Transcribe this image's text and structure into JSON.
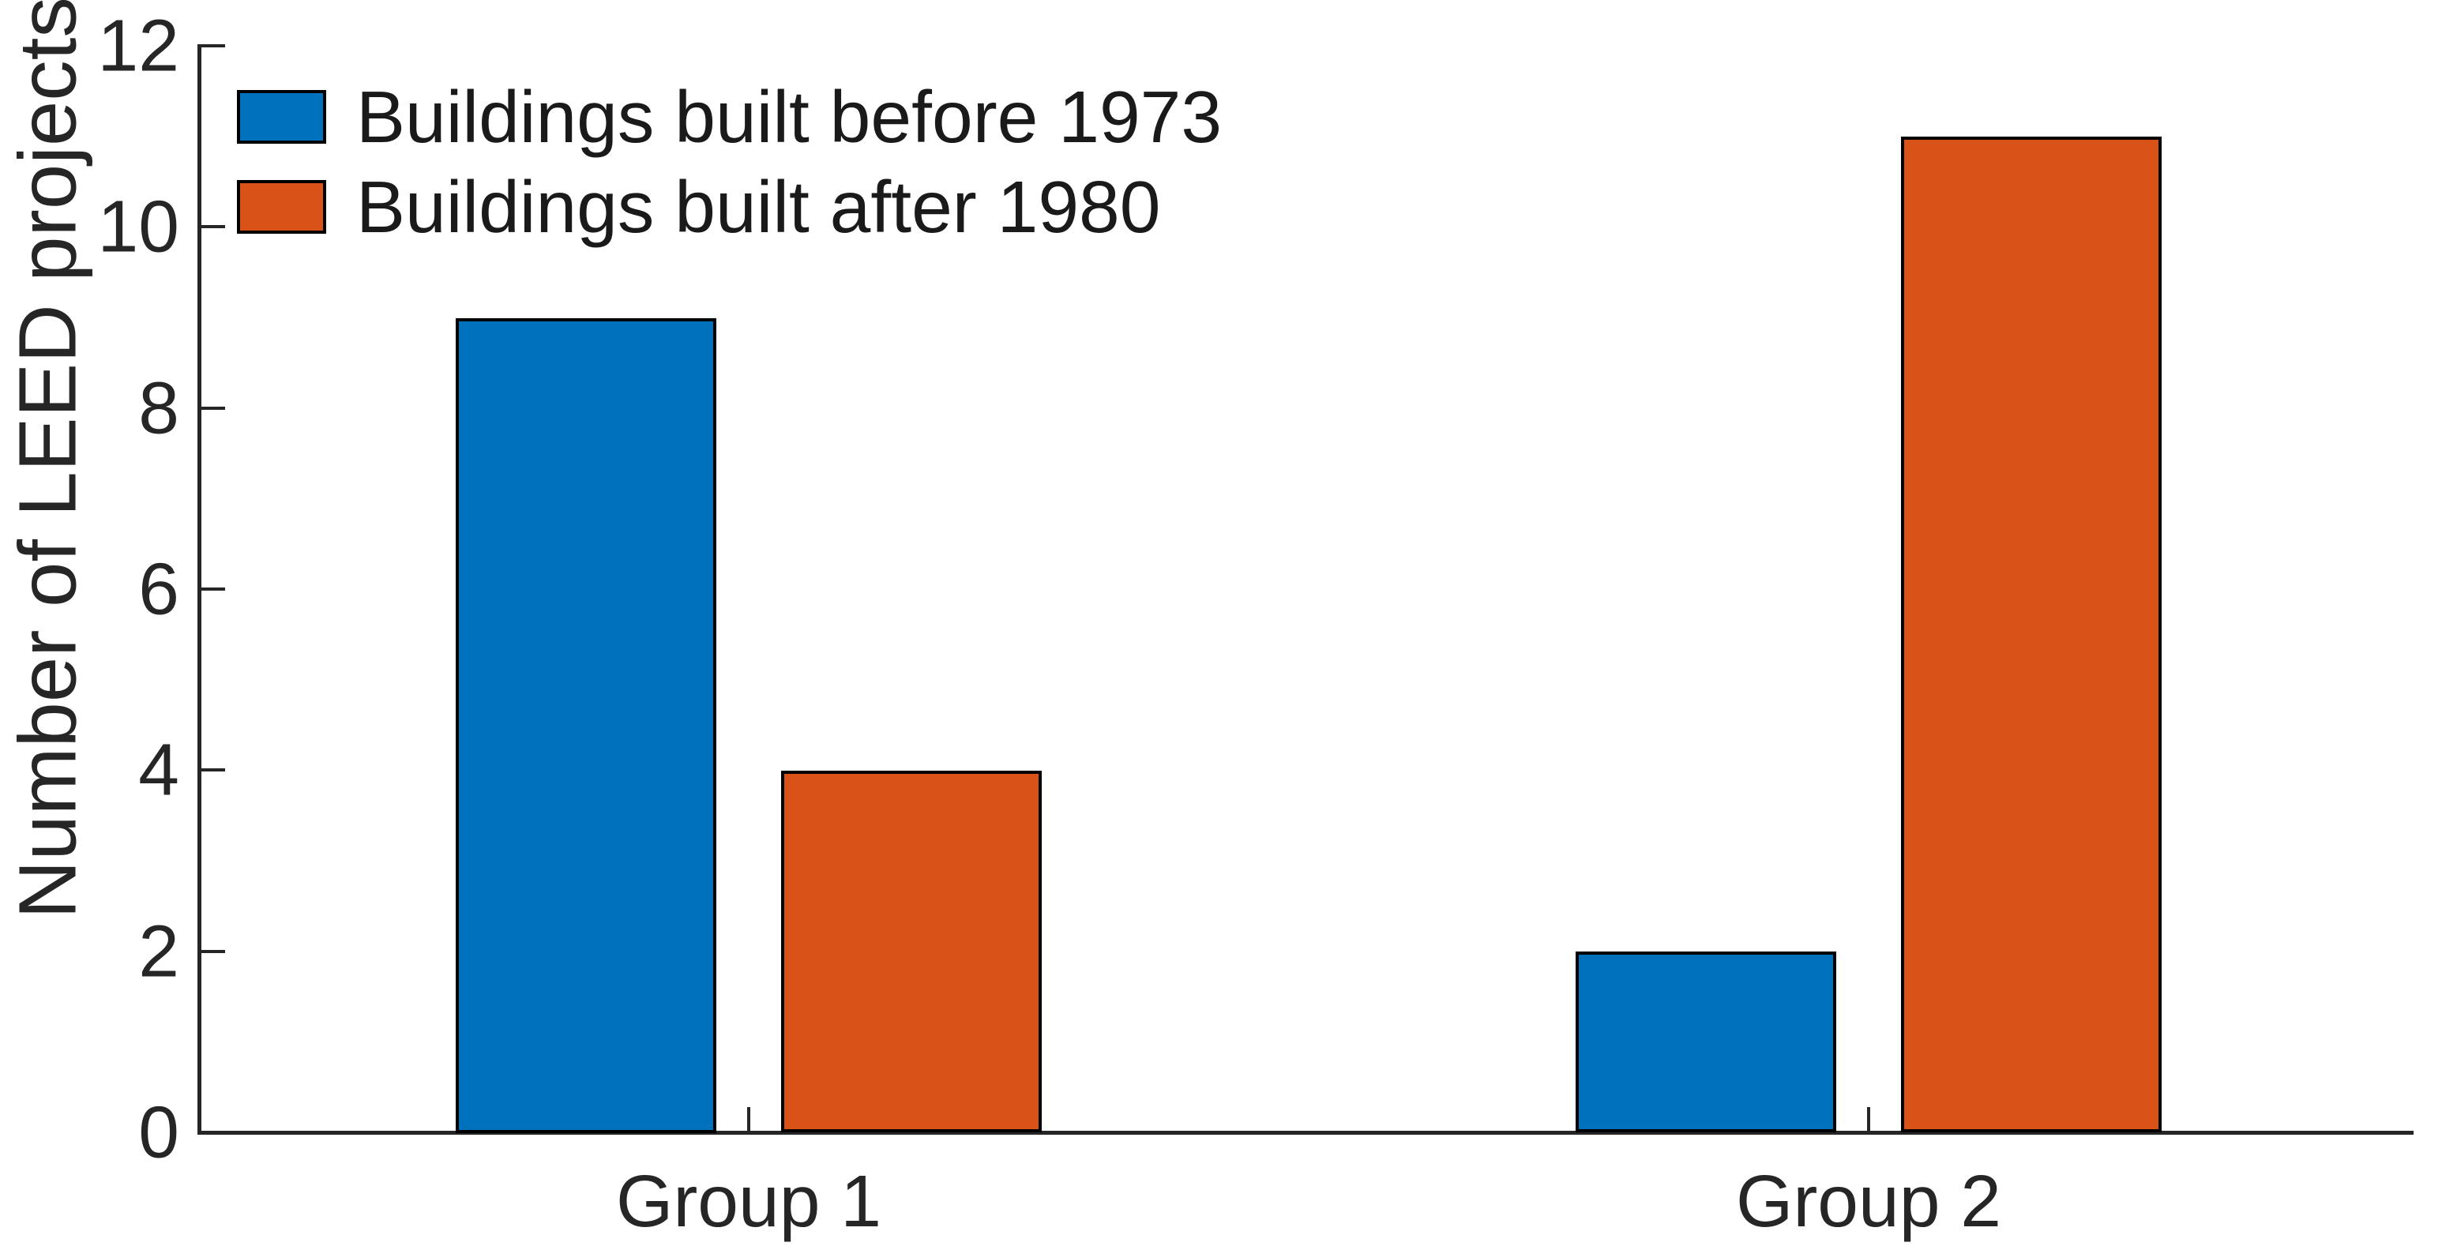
{
  "chart_data": {
    "type": "bar",
    "categories": [
      "Group 1",
      "Group 2"
    ],
    "series": [
      {
        "name": "Buildings built before 1973",
        "color": "#0072BD",
        "values": [
          9,
          2
        ]
      },
      {
        "name": "Buildings built after 1980",
        "color": "#D95319",
        "values": [
          4,
          11
        ]
      }
    ],
    "title": "",
    "xlabel": "",
    "ylabel": "Number of LEED projects",
    "ylim": [
      0,
      12
    ],
    "yticks": [
      0,
      2,
      4,
      6,
      8,
      10,
      12
    ],
    "grid": false,
    "legend_position": "northwest",
    "bar_edge_color": "#000000",
    "axis_color": "#262626",
    "background_color": "#FFFFFF"
  }
}
